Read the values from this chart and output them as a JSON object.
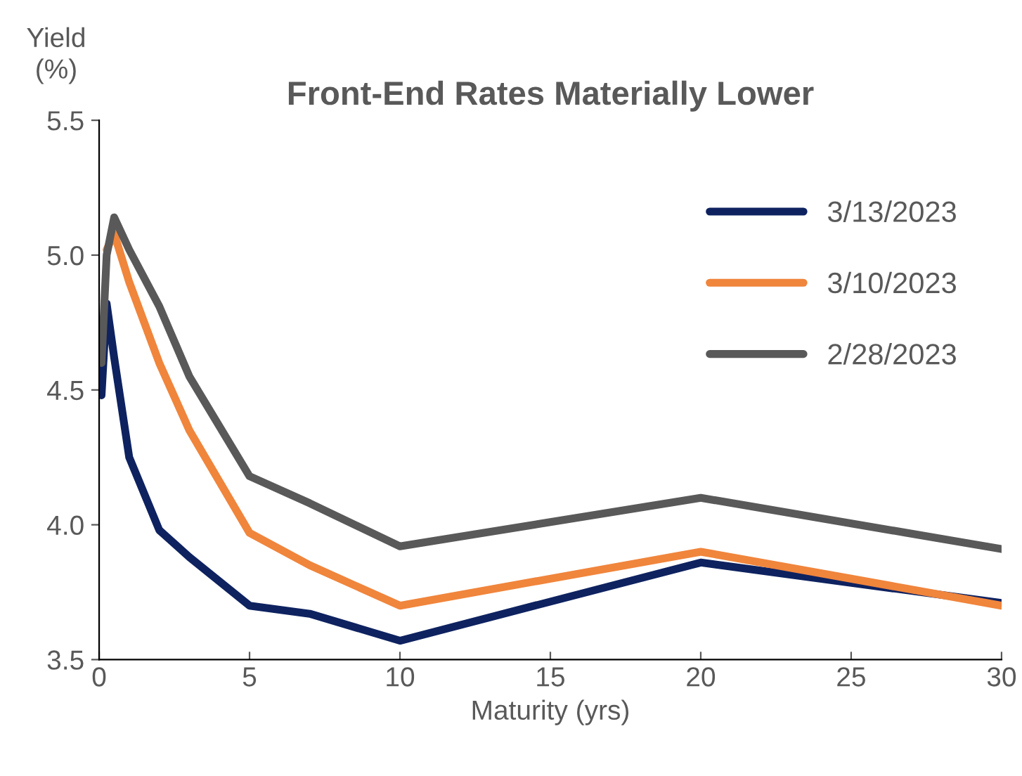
{
  "chart_data": {
    "type": "line",
    "title": "Front-End Rates Materially Lower",
    "xlabel": "Maturity (yrs)",
    "ylabel": "Yield\n(%)",
    "xlim": [
      0,
      30
    ],
    "xticks": [
      0,
      5,
      10,
      15,
      20,
      25,
      30
    ],
    "ylim": [
      3.5,
      5.5
    ],
    "yticks": [
      {
        "value": 3.5,
        "label": "3.5"
      },
      {
        "value": 4.0,
        "label": "4.0"
      },
      {
        "value": 4.5,
        "label": "4.5"
      },
      {
        "value": 5.0,
        "label": "5.0"
      },
      {
        "value": 5.5,
        "label": "5.5"
      }
    ],
    "x": [
      0.08,
      0.25,
      0.5,
      1,
      2,
      3,
      5,
      7,
      10,
      20,
      30
    ],
    "series": [
      {
        "name": "3/13/2023",
        "color": "#0e2260",
        "values": [
          4.48,
          4.82,
          4.62,
          4.25,
          3.98,
          3.88,
          3.7,
          3.67,
          3.57,
          3.86,
          3.71
        ]
      },
      {
        "name": "3/10/2023",
        "color": "#f0853c",
        "values": [
          null,
          5.02,
          5.08,
          4.9,
          4.6,
          4.35,
          3.97,
          3.85,
          3.7,
          3.9,
          3.7
        ]
      },
      {
        "name": "2/28/2023",
        "color": "#595959",
        "values": [
          4.6,
          5.0,
          5.14,
          5.02,
          4.81,
          4.55,
          4.18,
          4.08,
          3.92,
          4.1,
          3.91
        ]
      }
    ],
    "legend": "top right",
    "grid": false,
    "marker": "none",
    "line_style": "solid"
  }
}
